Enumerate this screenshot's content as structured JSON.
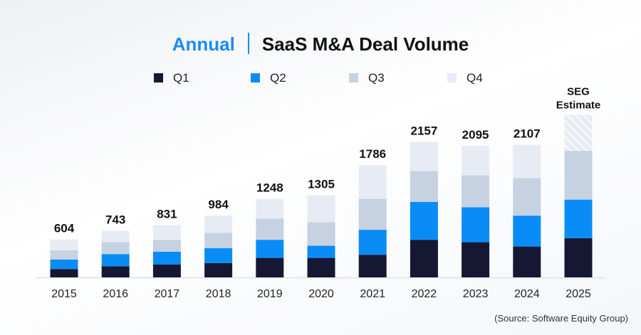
{
  "chart_data": {
    "type": "bar",
    "stacked": true,
    "title_accent": "Annual",
    "title": "SaaS M&A Deal Volume",
    "categories": [
      "2015",
      "2016",
      "2017",
      "2018",
      "2019",
      "2020",
      "2021",
      "2022",
      "2023",
      "2024",
      "2025"
    ],
    "series": [
      {
        "name": "Q1",
        "color": "#161833",
        "values": [
          133,
          178,
          204,
          227,
          310,
          310,
          360,
          598,
          559,
          491,
          624
        ]
      },
      {
        "name": "Q2",
        "color": "#0a8cf7",
        "values": [
          151,
          193,
          204,
          238,
          288,
          193,
          397,
          601,
          556,
          491,
          613
        ]
      },
      {
        "name": "Q3",
        "color": "#c6d1e1",
        "values": [
          148,
          189,
          190,
          242,
          337,
          375,
          492,
          491,
          511,
          597,
          775
        ]
      },
      {
        "name": "Q4",
        "color": "#e7ecf4",
        "values": [
          172,
          183,
          233,
          277,
          313,
          427,
          537,
          467,
          469,
          528,
          571
        ]
      }
    ],
    "totals": [
      "604",
      "743",
      "831",
      "984",
      "1248",
      "1305",
      "1786",
      "2157",
      "2095",
      "2107",
      ""
    ],
    "estimate_note": "SEG Estimate",
    "estimate_segment": {
      "category": "2025",
      "series": "Q4",
      "pattern": "hatched"
    },
    "ylim": [
      0,
      2700
    ],
    "grid": false,
    "legend_position": "top",
    "source": "(Source: Software Equity Group)"
  }
}
